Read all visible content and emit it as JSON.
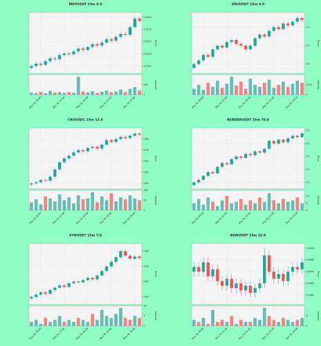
{
  "chart_data": [
    {
      "type": "candlestick",
      "title": "MOTUSDT 15m 8.0",
      "ylabel": "Price",
      "volume_label": "Volume",
      "grid": true,
      "up_color": "#26a69a",
      "down_color": "#ef5350",
      "categories": [
        null,
        null,
        "May 28, 00:00",
        null,
        null,
        null,
        null,
        "May 28, 01:00",
        null,
        null,
        null,
        null,
        "May 28, 02:00",
        null,
        null,
        null,
        null,
        "May 28, 03:00",
        null,
        null,
        null,
        null,
        "May 28, 04:00",
        null
      ],
      "open": [
        0.00992,
        0.01,
        0.0101,
        0.01005,
        0.0102,
        0.01032,
        0.01028,
        0.01045,
        0.01052,
        0.01048,
        0.0106,
        0.01072,
        0.01066,
        0.01078,
        0.0109,
        0.01084,
        0.01096,
        0.0111,
        0.01104,
        0.0112,
        0.01132,
        0.01128,
        0.0116,
        0.01195
      ],
      "high": [
        0.01008,
        0.01018,
        0.01018,
        0.01028,
        0.0104,
        0.0104,
        0.01053,
        0.0106,
        0.0106,
        0.01068,
        0.0108,
        0.0108,
        0.01086,
        0.01098,
        0.01098,
        0.01104,
        0.01118,
        0.01118,
        0.01128,
        0.0114,
        0.0114,
        0.01168,
        0.01203,
        0.01203
      ],
      "low": [
        0.00984,
        0.00992,
        0.00997,
        0.00997,
        0.01012,
        0.0102,
        0.0102,
        0.01037,
        0.0104,
        0.0104,
        0.01052,
        0.01058,
        0.01058,
        0.0107,
        0.01076,
        0.01076,
        0.01088,
        0.01096,
        0.01096,
        0.01112,
        0.0112,
        0.0112,
        0.01152,
        0.01177
      ],
      "close": [
        0.01,
        0.0101,
        0.01005,
        0.0102,
        0.01032,
        0.01028,
        0.01045,
        0.01052,
        0.01048,
        0.0106,
        0.01072,
        0.01066,
        0.01078,
        0.0109,
        0.01084,
        0.01096,
        0.0111,
        0.01104,
        0.0112,
        0.01132,
        0.01128,
        0.0116,
        0.01195,
        0.01185
      ],
      "volume": [
        120,
        90,
        150,
        80,
        200,
        110,
        140,
        95,
        130,
        100,
        900,
        160,
        120,
        180,
        90,
        150,
        210,
        130,
        170,
        260,
        140,
        300,
        380,
        220
      ],
      "ylim": [
        0.0097,
        0.0122
      ],
      "yticks": [
        {
          "value": 0.01,
          "label": "0.0100"
        },
        0.0105,
        {
          "value": 0.011,
          "label": "0.0110"
        },
        0.0115,
        {
          "value": 0.012,
          "label": "0.0120"
        }
      ],
      "volume_lim": [
        0,
        1000
      ],
      "volume_ticks": [
        0,
        500
      ]
    },
    {
      "type": "candlestick",
      "title": "ZROUSDT 15m 9.0",
      "ylabel": "Price",
      "volume_label": "Volume",
      "grid": true,
      "up_color": "#26a69a",
      "down_color": "#ef5350",
      "categories": [
        null,
        null,
        "May 28, 00:00",
        null,
        null,
        null,
        null,
        "May 28, 01:00",
        null,
        null,
        null,
        null,
        "May 28, 02:00",
        null,
        null,
        null,
        null,
        "May 28, 03:00",
        null,
        null,
        null,
        null,
        "May 28, 04:00",
        null
      ],
      "open": [
        3.38,
        3.4,
        3.42,
        3.45,
        3.44,
        3.48,
        3.5,
        3.49,
        3.52,
        3.53,
        3.51,
        3.5,
        3.48,
        3.5,
        3.54,
        3.56,
        3.55,
        3.58,
        3.6,
        3.59,
        3.62,
        3.61,
        3.63,
        3.65
      ],
      "high": [
        3.41,
        3.43,
        3.46,
        3.46,
        3.49,
        3.51,
        3.51,
        3.53,
        3.54,
        3.54,
        3.52,
        3.51,
        3.51,
        3.55,
        3.57,
        3.57,
        3.59,
        3.61,
        3.61,
        3.63,
        3.63,
        3.64,
        3.66,
        3.66
      ],
      "low": [
        3.37,
        3.39,
        3.41,
        3.43,
        3.43,
        3.47,
        3.48,
        3.48,
        3.51,
        3.5,
        3.49,
        3.47,
        3.47,
        3.49,
        3.53,
        3.54,
        3.54,
        3.57,
        3.58,
        3.58,
        3.6,
        3.6,
        3.62,
        3.63
      ],
      "close": [
        3.4,
        3.42,
        3.45,
        3.44,
        3.48,
        3.5,
        3.49,
        3.52,
        3.53,
        3.51,
        3.5,
        3.48,
        3.5,
        3.54,
        3.56,
        3.55,
        3.58,
        3.6,
        3.59,
        3.62,
        3.61,
        3.63,
        3.65,
        3.64
      ],
      "volume": [
        3000,
        5000,
        2500,
        6000,
        4000,
        7000,
        3500,
        5500,
        9000,
        4500,
        6500,
        3000,
        8000,
        5000,
        4000,
        6000,
        7500,
        3500,
        5000,
        6500,
        4000,
        5500,
        7000,
        6000
      ],
      "ylim": [
        3.35,
        3.68
      ],
      "yticks": [
        3.4,
        3.5,
        3.6
      ],
      "volume_lim": [
        0,
        10000
      ],
      "volume_ticks": [
        0,
        5000
      ]
    },
    {
      "type": "candlestick",
      "title": "CRVUSDC 15m 13.0",
      "ylabel": "Price",
      "volume_label": "Volume",
      "grid": true,
      "up_color": "#26a69a",
      "down_color": "#ef5350",
      "categories": [
        null,
        null,
        "May 28, 00:00",
        null,
        null,
        null,
        null,
        "May 28, 01:00",
        null,
        null,
        null,
        null,
        "May 28, 02:00",
        null,
        null,
        null,
        null,
        "May 28, 03:00",
        null,
        null,
        null,
        null,
        "May 28, 04:00",
        null
      ],
      "open": [
        0.798,
        0.8,
        0.802,
        0.806,
        0.805,
        0.812,
        0.825,
        0.838,
        0.845,
        0.85,
        0.856,
        0.86,
        0.858,
        0.864,
        0.866,
        0.863,
        0.87,
        0.878,
        0.875,
        0.88,
        0.884,
        0.882,
        0.886,
        0.89
      ],
      "high": [
        0.803,
        0.805,
        0.809,
        0.809,
        0.815,
        0.828,
        0.841,
        0.848,
        0.853,
        0.859,
        0.863,
        0.863,
        0.867,
        0.869,
        0.869,
        0.873,
        0.881,
        0.881,
        0.883,
        0.887,
        0.887,
        0.889,
        0.893,
        0.893
      ],
      "low": [
        0.795,
        0.797,
        0.799,
        0.802,
        0.802,
        0.809,
        0.822,
        0.835,
        0.842,
        0.847,
        0.853,
        0.855,
        0.855,
        0.861,
        0.86,
        0.86,
        0.867,
        0.872,
        0.872,
        0.877,
        0.879,
        0.879,
        0.883,
        0.885
      ],
      "close": [
        0.8,
        0.802,
        0.806,
        0.805,
        0.812,
        0.825,
        0.838,
        0.845,
        0.85,
        0.856,
        0.86,
        0.858,
        0.864,
        0.866,
        0.863,
        0.87,
        0.878,
        0.875,
        0.88,
        0.884,
        0.882,
        0.886,
        0.89,
        0.888
      ],
      "volume": [
        40,
        55,
        30,
        70,
        60,
        45,
        80,
        50,
        65,
        35,
        75,
        55,
        60,
        90,
        40,
        70,
        50,
        85,
        45,
        65,
        55,
        75,
        60,
        50
      ],
      "ylim": [
        0.79,
        0.9
      ],
      "yticks": [
        {
          "value": 0.8,
          "label": "0.80"
        },
        0.82,
        0.84,
        0.86,
        0.88
      ],
      "volume_lim": [
        0,
        100
      ],
      "volume_ticks": [
        0,
        50,
        100
      ]
    },
    {
      "type": "candlestick",
      "title": "RENDERUSDT 15m 78.0",
      "ylabel": "Price",
      "volume_label": "Volume",
      "grid": true,
      "up_color": "#26a69a",
      "down_color": "#ef5350",
      "categories": [
        null,
        null,
        "May 28, 00:00",
        null,
        null,
        null,
        null,
        "May 28, 01:00",
        null,
        null,
        null,
        null,
        "May 28, 02:00",
        null,
        null,
        null,
        null,
        "May 28, 03:00",
        null,
        null,
        null,
        null,
        "May 28, 04:00",
        null
      ],
      "open": [
        4.18,
        4.2,
        4.22,
        4.25,
        4.28,
        4.27,
        4.32,
        4.35,
        4.34,
        4.38,
        4.4,
        4.39,
        4.42,
        4.41,
        4.44,
        4.43,
        4.46,
        4.52,
        4.5,
        4.53,
        4.51,
        4.54,
        4.56,
        4.55
      ],
      "high": [
        4.21,
        4.23,
        4.26,
        4.29,
        4.29,
        4.33,
        4.36,
        4.36,
        4.39,
        4.41,
        4.41,
        4.43,
        4.43,
        4.45,
        4.45,
        4.47,
        4.53,
        4.53,
        4.54,
        4.54,
        4.55,
        4.57,
        4.57,
        4.59
      ],
      "low": [
        4.17,
        4.19,
        4.21,
        4.24,
        4.26,
        4.26,
        4.31,
        4.33,
        4.33,
        4.37,
        4.38,
        4.38,
        4.4,
        4.4,
        4.42,
        4.42,
        4.45,
        4.49,
        4.49,
        4.5,
        4.5,
        4.53,
        4.54,
        4.54
      ],
      "close": [
        4.2,
        4.22,
        4.25,
        4.28,
        4.27,
        4.32,
        4.35,
        4.34,
        4.38,
        4.4,
        4.39,
        4.42,
        4.41,
        4.44,
        4.43,
        4.46,
        4.52,
        4.5,
        4.53,
        4.51,
        4.54,
        4.56,
        4.55,
        4.58
      ],
      "volume": [
        5,
        8,
        4,
        9,
        6,
        3,
        7,
        10,
        5,
        6,
        8,
        4,
        7,
        5,
        9,
        6,
        12,
        7,
        5,
        8,
        6,
        7,
        9,
        5
      ],
      "ylim": [
        4.15,
        4.62
      ],
      "yticks": [
        4.2,
        4.3,
        4.4,
        4.5,
        4.6
      ],
      "volume_lim": [
        0,
        14
      ],
      "volume_ticks": [
        0,
        5,
        10
      ]
    },
    {
      "type": "candlestick",
      "title": "SYNUSDT 15m 7.0",
      "ylabel": "Price",
      "volume_label": "Volume",
      "grid": true,
      "up_color": "#26a69a",
      "down_color": "#ef5350",
      "categories": [
        null,
        null,
        "May 28, 00:00",
        null,
        null,
        null,
        null,
        "May 28, 01:00",
        null,
        null,
        null,
        null,
        "May 28, 02:00",
        null,
        null,
        null,
        null,
        "May 28, 03:00",
        null,
        null,
        null,
        null,
        "May 28, 04:00",
        null
      ],
      "open": [
        0.598,
        0.6,
        0.603,
        0.606,
        0.604,
        0.609,
        0.612,
        0.615,
        0.613,
        0.618,
        0.62,
        0.619,
        0.622,
        0.625,
        0.623,
        0.628,
        0.634,
        0.64,
        0.646,
        0.652,
        0.66,
        0.654,
        0.65,
        0.653
      ],
      "high": [
        0.602,
        0.605,
        0.608,
        0.608,
        0.611,
        0.614,
        0.617,
        0.617,
        0.62,
        0.622,
        0.622,
        0.624,
        0.627,
        0.627,
        0.63,
        0.636,
        0.642,
        0.648,
        0.654,
        0.662,
        0.662,
        0.656,
        0.655,
        0.655
      ],
      "low": [
        0.596,
        0.598,
        0.601,
        0.602,
        0.602,
        0.607,
        0.61,
        0.611,
        0.611,
        0.616,
        0.617,
        0.617,
        0.62,
        0.621,
        0.621,
        0.626,
        0.632,
        0.638,
        0.644,
        0.65,
        0.652,
        0.648,
        0.648,
        0.649
      ],
      "close": [
        0.6,
        0.603,
        0.606,
        0.604,
        0.609,
        0.612,
        0.615,
        0.613,
        0.618,
        0.62,
        0.619,
        0.622,
        0.625,
        0.623,
        0.628,
        0.634,
        0.64,
        0.646,
        0.652,
        0.66,
        0.654,
        0.65,
        0.653,
        0.651
      ],
      "volume": [
        2,
        3,
        1,
        4,
        2,
        3,
        5,
        2,
        3,
        2,
        4,
        3,
        2,
        6,
        3,
        8,
        5,
        4,
        6,
        9,
        4,
        3,
        5,
        4
      ],
      "ylim": [
        0.59,
        0.67
      ],
      "yticks": [
        {
          "value": 0.6,
          "label": "0.60"
        },
        0.62,
        0.64,
        0.66
      ],
      "volume_lim": [
        0,
        10
      ],
      "volume_ticks": [
        0,
        5,
        10
      ]
    },
    {
      "type": "candlestick",
      "title": "BSWUSDT 15m 22.0",
      "ylabel": "Price",
      "volume_label": "Volume",
      "grid": true,
      "up_color": "#26a69a",
      "down_color": "#ef5350",
      "categories": [
        null,
        null,
        "May 28, 00:00",
        null,
        null,
        null,
        null,
        "May 28, 01:00",
        null,
        null,
        null,
        null,
        "May 28, 02:00",
        null,
        null,
        null,
        null,
        "May 28, 03:00",
        null,
        null,
        null,
        null,
        "May 28, 04:00",
        null
      ],
      "open": [
        0.049,
        0.0492,
        0.049,
        0.0494,
        0.0488,
        0.0491,
        0.0486,
        0.0484,
        0.0487,
        0.0483,
        0.0485,
        0.0482,
        0.0484,
        0.0481,
        0.0483,
        0.0485,
        0.0497,
        0.049,
        0.0487,
        0.0489,
        0.0486,
        0.049,
        0.0492,
        0.0491
      ],
      "high": [
        0.0494,
        0.0494,
        0.0496,
        0.0496,
        0.0493,
        0.0493,
        0.0488,
        0.0489,
        0.0489,
        0.0487,
        0.0487,
        0.0486,
        0.0486,
        0.0485,
        0.0487,
        0.05,
        0.0499,
        0.0492,
        0.0491,
        0.0491,
        0.0492,
        0.0494,
        0.0494,
        0.0496
      ],
      "low": [
        0.0488,
        0.0488,
        0.0488,
        0.0486,
        0.0486,
        0.0484,
        0.0482,
        0.0482,
        0.0481,
        0.0481,
        0.048,
        0.048,
        0.0479,
        0.0479,
        0.0481,
        0.0483,
        0.0488,
        0.0485,
        0.0485,
        0.0484,
        0.0484,
        0.0488,
        0.0489,
        0.0489
      ],
      "close": [
        0.0492,
        0.049,
        0.0494,
        0.0488,
        0.0491,
        0.0486,
        0.0484,
        0.0487,
        0.0483,
        0.0485,
        0.0482,
        0.0484,
        0.0481,
        0.0483,
        0.0485,
        0.0497,
        0.049,
        0.0487,
        0.0489,
        0.0486,
        0.049,
        0.0492,
        0.0491,
        0.0494
      ],
      "volume": [
        3,
        2,
        4,
        1,
        8,
        2,
        3,
        2,
        5,
        1,
        3,
        2,
        2,
        4,
        3,
        9,
        5,
        3,
        2,
        4,
        3,
        2,
        3,
        4
      ],
      "ylim": [
        0.0476,
        0.0502
      ],
      "yticks": [
        {
          "value": 0.048,
          "label": "0.0480"
        },
        0.0485,
        {
          "value": 0.049,
          "label": "0.0490"
        },
        0.0495,
        {
          "value": 0.05,
          "label": "0.0500"
        }
      ],
      "volume_lim": [
        0,
        10
      ],
      "volume_ticks": [
        0,
        5
      ]
    }
  ]
}
